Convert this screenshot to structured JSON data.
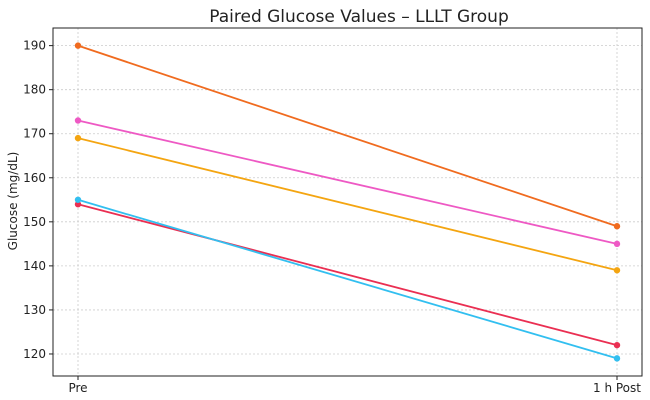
{
  "chart_data": {
    "type": "line",
    "title": "Paired Glucose Values – LLLT Group",
    "xlabel": "",
    "ylabel": "Glucose (mg/dL)",
    "categories": [
      "Pre",
      "1 h Post"
    ],
    "ylim": [
      115,
      194
    ],
    "yticks": [
      120,
      130,
      140,
      150,
      160,
      170,
      180,
      190
    ],
    "grid": true,
    "series": [
      {
        "values": [
          190,
          149
        ],
        "color": "#f06b1f"
      },
      {
        "values": [
          173,
          145
        ],
        "color": "#ee59c4"
      },
      {
        "values": [
          169,
          139
        ],
        "color": "#f4a511"
      },
      {
        "values": [
          154,
          122
        ],
        "color": "#ea2f52"
      },
      {
        "values": [
          155,
          119
        ],
        "color": "#32bff0"
      }
    ]
  }
}
